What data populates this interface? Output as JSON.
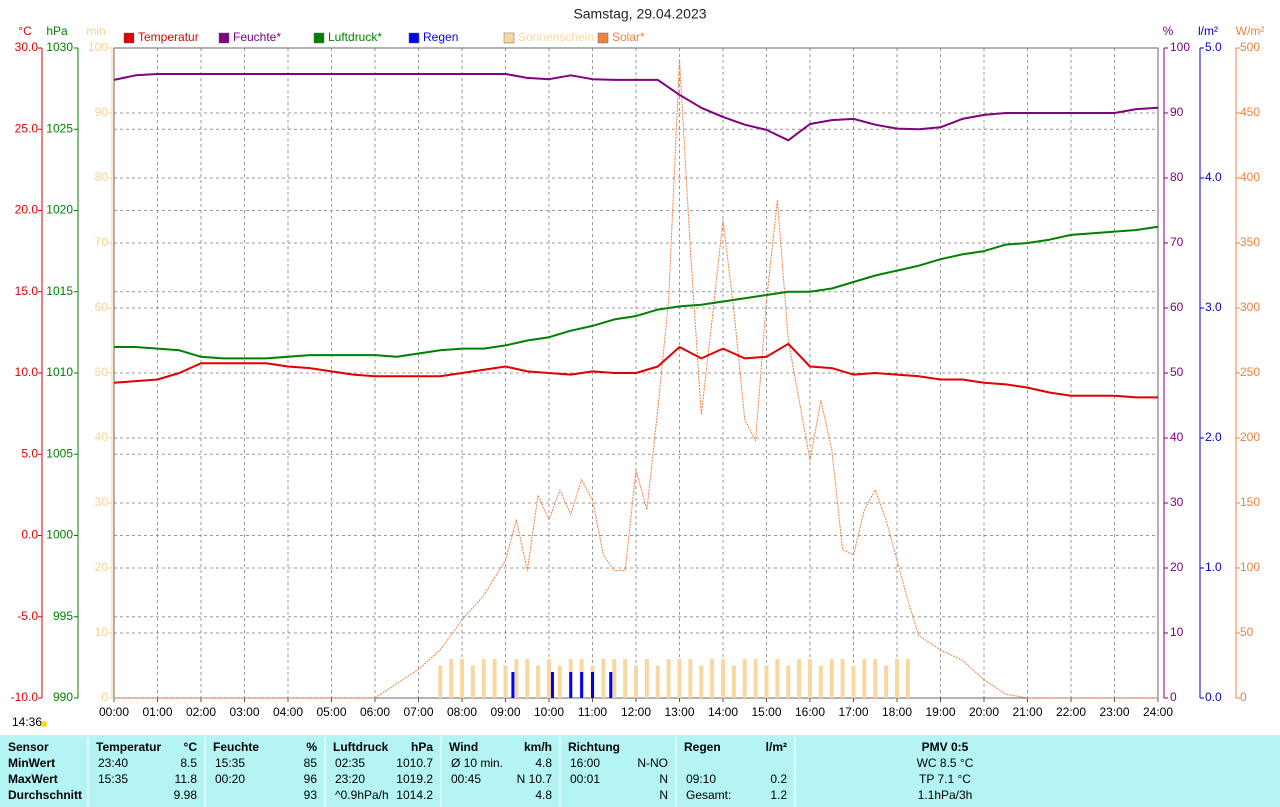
{
  "timestamp": "14:36",
  "chart_data": {
    "type": "line",
    "title": "Samstag, 29.04.2023",
    "x": [
      0,
      0.5,
      1,
      1.5,
      2,
      2.5,
      3,
      3.5,
      4,
      4.5,
      5,
      5.5,
      6,
      6.5,
      7,
      7.5,
      8,
      8.5,
      9,
      9.5,
      10,
      10.5,
      11,
      11.5,
      12,
      12.5,
      13,
      13.5,
      14,
      14.5,
      15,
      15.5,
      16,
      16.5,
      17,
      17.5,
      18,
      18.5,
      19,
      19.5,
      20,
      20.5,
      21,
      21.5,
      22,
      22.5,
      23,
      23.5,
      24
    ],
    "xlim": [
      0,
      24
    ],
    "xticks": [
      {
        "value": 0,
        "label": "00:00"
      },
      {
        "value": 1,
        "label": "01:00"
      },
      {
        "value": 2,
        "label": "02:00"
      },
      {
        "value": 3,
        "label": "03:00"
      },
      {
        "value": 4,
        "label": "04:00"
      },
      {
        "value": 5,
        "label": "05:00"
      },
      {
        "value": 6,
        "label": "06:00"
      },
      {
        "value": 7,
        "label": "07:00"
      },
      {
        "value": 8,
        "label": "08:00"
      },
      {
        "value": 9,
        "label": "09:00"
      },
      {
        "value": 10,
        "label": "10:00"
      },
      {
        "value": 11,
        "label": "11:00"
      },
      {
        "value": 12,
        "label": "12:00"
      },
      {
        "value": 13,
        "label": "13:00"
      },
      {
        "value": 14,
        "label": "14:00"
      },
      {
        "value": 15,
        "label": "15:00"
      },
      {
        "value": 16,
        "label": "16:00"
      },
      {
        "value": 17,
        "label": "17:00"
      },
      {
        "value": 18,
        "label": "18:00"
      },
      {
        "value": 19,
        "label": "19:00"
      },
      {
        "value": 20,
        "label": "20:00"
      },
      {
        "value": 21,
        "label": "21:00"
      },
      {
        "value": 22,
        "label": "22:00"
      },
      {
        "value": 23,
        "label": "23:00"
      },
      {
        "value": 24,
        "label": "24:00"
      }
    ],
    "grid": true,
    "axes": [
      {
        "label": "°C",
        "color": "#e00000",
        "side": "left",
        "grid": true,
        "ylim": [
          -10,
          30
        ],
        "yticks": [
          {
            "value": -10,
            "label": "-10.0"
          },
          {
            "value": -5,
            "label": "-5.0"
          },
          {
            "value": 0,
            "label": "0.0"
          },
          {
            "value": 5,
            "label": "5.0"
          },
          {
            "value": 10,
            "label": "10.0"
          },
          {
            "value": 15,
            "label": "15.0"
          },
          {
            "value": 20,
            "label": "20.0"
          },
          {
            "value": 25,
            "label": "25.0"
          },
          {
            "value": 30,
            "label": "30.0"
          }
        ]
      },
      {
        "label": "hPa",
        "color": "#008000",
        "side": "left",
        "grid": false,
        "ylim": [
          990,
          1030
        ],
        "yticks": [
          990,
          995,
          1000,
          1005,
          1010,
          1015,
          1020,
          1025,
          1030
        ]
      },
      {
        "label": "min",
        "color": "#f8d098",
        "side": "left",
        "grid": false,
        "ylim": [
          0,
          100
        ],
        "yticks": [
          0,
          10,
          20,
          30,
          40,
          50,
          60,
          70,
          80,
          90,
          100
        ]
      },
      {
        "label": "%",
        "color": "#800080",
        "side": "right",
        "grid": true,
        "ylim": [
          0,
          100
        ],
        "yticks": [
          0,
          10,
          20,
          30,
          40,
          50,
          60,
          70,
          80,
          90,
          100
        ]
      },
      {
        "label": "l/m²",
        "color": "#0000c0",
        "side": "right",
        "grid": false,
        "ylim": [
          0,
          5
        ],
        "yticks": [
          {
            "value": 0,
            "label": "0.0"
          },
          {
            "value": 1,
            "label": "1.0"
          },
          {
            "value": 2,
            "label": "2.0"
          },
          {
            "value": 3,
            "label": "3.0"
          },
          {
            "value": 4,
            "label": "4.0"
          },
          {
            "value": 5,
            "label": "5.0"
          }
        ]
      },
      {
        "label": "W/m²",
        "color": "#f08040",
        "side": "right",
        "grid": false,
        "ylim": [
          0,
          500
        ],
        "yticks": [
          0,
          50,
          100,
          150,
          200,
          250,
          300,
          350,
          400,
          450,
          500
        ]
      }
    ],
    "series": [
      {
        "name": "Temperatur",
        "type": "line",
        "axis": 0,
        "color": "#e00000",
        "values": [
          9.4,
          9.5,
          9.6,
          10.0,
          10.6,
          10.6,
          10.6,
          10.6,
          10.4,
          10.3,
          10.1,
          9.9,
          9.8,
          9.8,
          9.8,
          9.8,
          10.0,
          10.2,
          10.4,
          10.1,
          10.0,
          9.9,
          10.1,
          10.0,
          10.0,
          10.4,
          11.6,
          10.9,
          11.5,
          10.9,
          11.0,
          11.8,
          10.4,
          10.3,
          9.9,
          10.0,
          9.9,
          9.8,
          9.6,
          9.6,
          9.4,
          9.3,
          9.1,
          8.8,
          8.6,
          8.6,
          8.6,
          8.5,
          8.5
        ]
      },
      {
        "name": "Feuchte*",
        "type": "line",
        "axis": 3,
        "color": "#800080",
        "values": [
          95.1,
          95.8,
          96,
          96,
          96,
          96,
          96,
          96,
          96,
          96,
          96,
          96,
          96,
          96,
          96,
          96,
          96,
          96,
          96,
          95.4,
          95.2,
          95.8,
          95.2,
          95.1,
          95.1,
          95.1,
          92.8,
          90.8,
          89.4,
          88.2,
          87.4,
          85.8,
          88.3,
          88.9,
          89.1,
          88.2,
          87.6,
          87.5,
          87.8,
          89.1,
          89.7,
          90,
          90,
          90,
          90,
          90,
          90,
          90.6,
          90.8
        ]
      },
      {
        "name": "Luftdruck*",
        "type": "line",
        "axis": 1,
        "color": "#008000",
        "values": [
          1011.6,
          1011.6,
          1011.5,
          1011.4,
          1011.0,
          1010.9,
          1010.9,
          1010.9,
          1011.0,
          1011.1,
          1011.1,
          1011.1,
          1011.1,
          1011.0,
          1011.2,
          1011.4,
          1011.5,
          1011.5,
          1011.7,
          1012.0,
          1012.2,
          1012.6,
          1012.9,
          1013.3,
          1013.5,
          1013.9,
          1014.1,
          1014.2,
          1014.4,
          1014.6,
          1014.8,
          1015.0,
          1015.0,
          1015.2,
          1015.6,
          1016.0,
          1016.3,
          1016.6,
          1017.0,
          1017.3,
          1017.5,
          1017.9,
          1018.0,
          1018.2,
          1018.5,
          1018.6,
          1018.7,
          1018.8,
          1019.0
        ]
      },
      {
        "name": "Regen",
        "type": "bar",
        "axis": 4,
        "color": "#0000ff",
        "x": [
          9.17,
          10.08,
          10.5,
          10.75,
          11,
          11.42
        ],
        "values": [
          0.2,
          0.2,
          0.2,
          0.2,
          0.2,
          0.2
        ]
      },
      {
        "name": "Sonnenschein",
        "type": "bar",
        "axis": 2,
        "color": "#f8d8a0",
        "x": [
          7.5,
          7.75,
          8,
          8.25,
          8.5,
          8.75,
          9,
          9.25,
          9.5,
          9.75,
          10,
          10.25,
          10.5,
          10.75,
          11,
          11.25,
          11.5,
          11.75,
          12,
          12.25,
          12.5,
          12.75,
          13,
          13.25,
          13.5,
          13.75,
          14,
          14.25,
          14.5,
          14.75,
          15,
          15.25,
          15.5,
          15.75,
          16,
          16.25,
          16.5,
          16.75,
          17,
          17.25,
          17.5,
          17.75,
          18,
          18.25
        ],
        "values": [
          5,
          6,
          6,
          5,
          6,
          6,
          5,
          6,
          6,
          5,
          6,
          5,
          6,
          6,
          5,
          6,
          6,
          6,
          5,
          6,
          5,
          6,
          6,
          6,
          5,
          6,
          6,
          5,
          6,
          6,
          5,
          6,
          5,
          6,
          6,
          5,
          6,
          6,
          5,
          6,
          6,
          5,
          6,
          6
        ]
      },
      {
        "name": "Solar*",
        "type": "line",
        "axis": 5,
        "color": "#f08040",
        "dashed": true,
        "x": [
          0,
          6,
          7,
          7.5,
          8,
          8.5,
          9,
          9.25,
          9.5,
          9.75,
          10,
          10.25,
          10.5,
          10.75,
          11,
          11.25,
          11.5,
          11.75,
          12,
          12.25,
          12.5,
          12.75,
          13,
          13.25,
          13.5,
          13.75,
          14,
          14.25,
          14.5,
          14.75,
          15,
          15.25,
          15.5,
          15.75,
          16,
          16.25,
          16.5,
          16.75,
          17,
          17.25,
          17.5,
          17.75,
          18,
          18.25,
          18.5,
          19,
          19.5,
          20,
          20.5,
          21,
          24
        ],
        "values": [
          0,
          0,
          22,
          37,
          60,
          79,
          106,
          137,
          98,
          156,
          137,
          160,
          141,
          168,
          152,
          110,
          98,
          98,
          175,
          145,
          222,
          306,
          491,
          345,
          218,
          291,
          368,
          298,
          214,
          198,
          306,
          383,
          275,
          229,
          183,
          229,
          191,
          114,
          110,
          145,
          160,
          137,
          106,
          75,
          48,
          37,
          29,
          14,
          3,
          0,
          0
        ]
      }
    ]
  },
  "summary_table": {
    "headers": [
      {
        "title": "Sensor"
      },
      {
        "title": "Temperatur",
        "unit": "°C"
      },
      {
        "title": "Feuchte",
        "unit": "%"
      },
      {
        "title": "Luftdruck",
        "unit": "hPa"
      },
      {
        "title": "Wind",
        "unit": "km/h"
      },
      {
        "title": "Richtung"
      },
      {
        "title": "Regen",
        "unit": "l/m²"
      },
      {
        "title": "PMV 0:5"
      }
    ],
    "rows": [
      {
        "label": "MinWert",
        "cells": [
          {
            "left": "23:40",
            "right": "8.5"
          },
          {
            "left": "15:35",
            "right": "85"
          },
          {
            "left": "02:35",
            "right": "1010.7"
          },
          {
            "left": "Ø 10 min.",
            "right": "4.8"
          },
          {
            "left": "16:00",
            "right": "N-NO"
          },
          {},
          {
            "center": "WC 8.5 °C"
          }
        ]
      },
      {
        "label": "MaxWert",
        "cells": [
          {
            "left": "15:35",
            "right": "11.8"
          },
          {
            "left": "00:20",
            "right": "96"
          },
          {
            "left": "23:20",
            "right": "1019.2"
          },
          {
            "left": "00:45",
            "right": "N 10.7"
          },
          {
            "left": "00:01",
            "right": "N"
          },
          {
            "left": "09:10",
            "right": "0.2"
          },
          {
            "center": "TP 7.1 °C"
          }
        ]
      },
      {
        "label": "Durchschnitt",
        "cells": [
          {
            "right": "9.98"
          },
          {
            "right": "93"
          },
          {
            "left": "^0.9hPa/h",
            "right": "1014.2"
          },
          {
            "right": "4.8"
          },
          {
            "right": "N"
          },
          {
            "left": "Gesamt:",
            "right": "1.2"
          },
          {
            "center": "1.1hPa/3h"
          }
        ]
      }
    ]
  }
}
